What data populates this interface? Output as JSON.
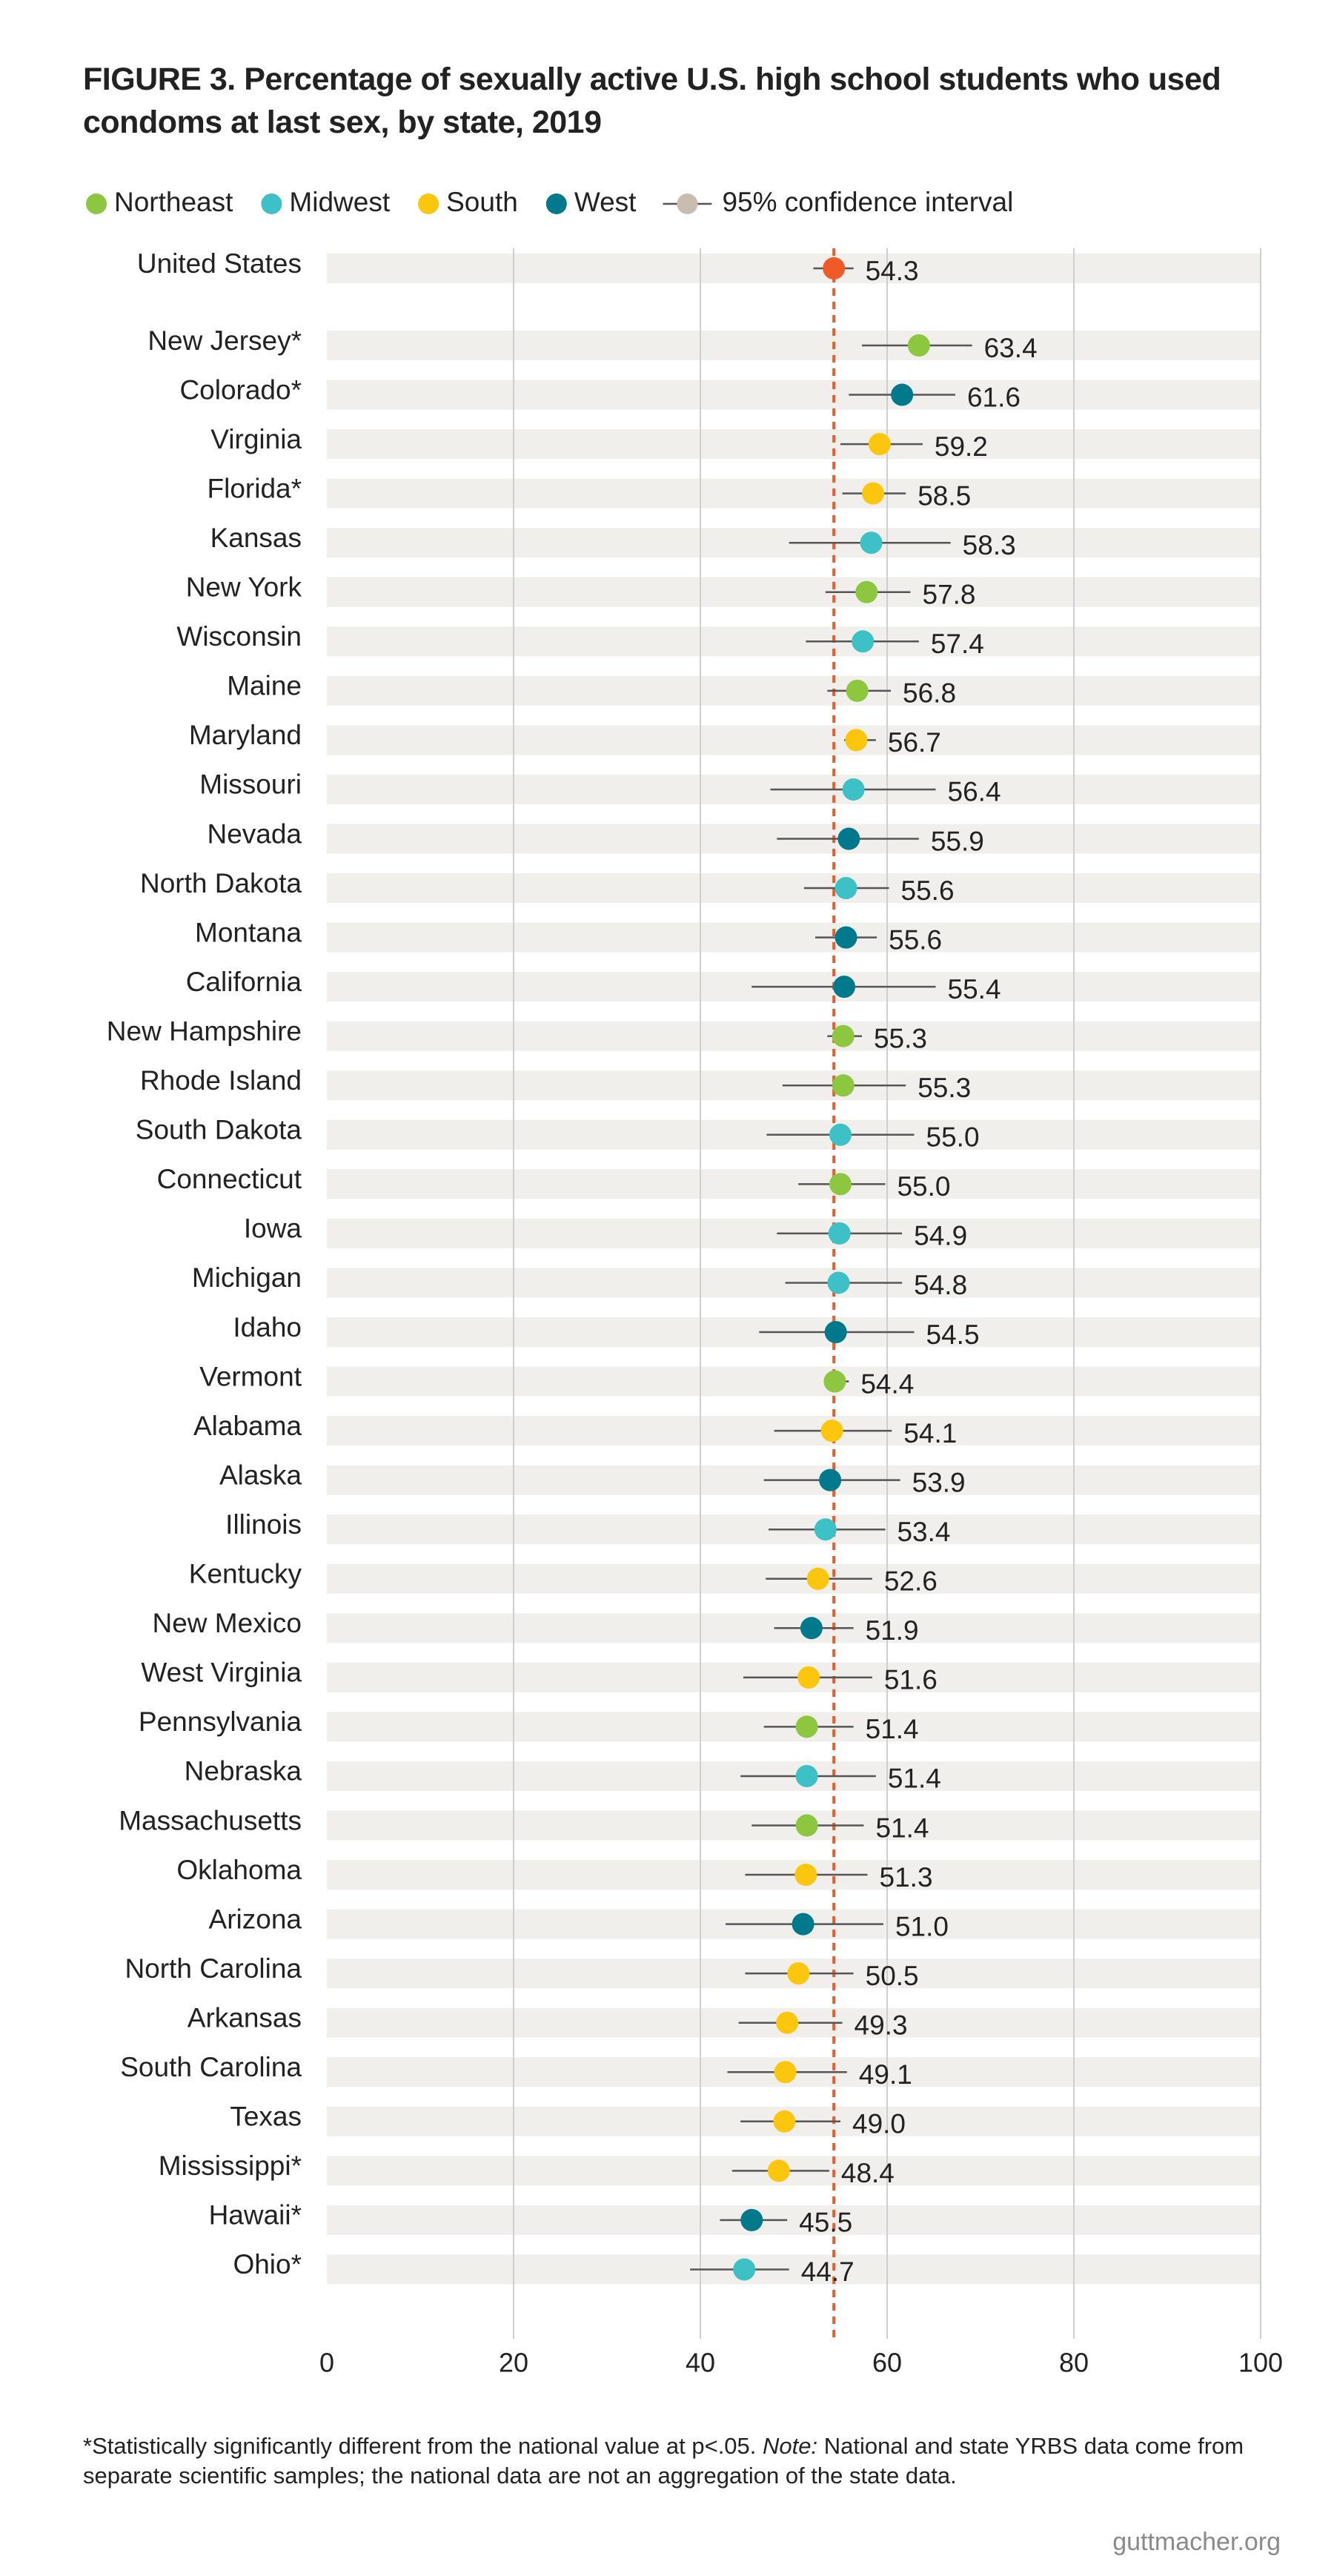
{
  "chart_data": {
    "type": "dot",
    "title": "FIGURE 3. Percentage of sexually active U.S. high school students who used condoms at last sex, by state, 2019",
    "legend": [
      {
        "name": "Northeast",
        "color": "#8dc63f"
      },
      {
        "name": "Midwest",
        "color": "#3ec1c6"
      },
      {
        "name": "South",
        "color": "#fcc60e"
      },
      {
        "name": "West",
        "color": "#00798c"
      }
    ],
    "ci_label": "95% confidence interval",
    "ci_color": "#555555",
    "ci_legend_color": "#c8beb0",
    "highlight_color": "#f05a28",
    "reference_color": "#f05a28",
    "band_color": "#f0efeb",
    "categories": [
      "United States",
      "New Jersey*",
      "Colorado*",
      "Virginia",
      "Florida*",
      "Kansas",
      "New York",
      "Wisconsin",
      "Maine",
      "Maryland",
      "Missouri",
      "Nevada",
      "North Dakota",
      "Montana",
      "California",
      "New Hampshire",
      "Rhode Island",
      "South Dakota",
      "Connecticut",
      "Iowa",
      "Michigan",
      "Idaho",
      "Vermont",
      "Alabama",
      "Alaska",
      "Illinois",
      "Kentucky",
      "New Mexico",
      "West Virginia",
      "Pennsylvania",
      "Nebraska",
      "Massachusetts",
      "Oklahoma",
      "Arizona",
      "North Carolina",
      "Arkansas",
      "South Carolina",
      "Texas",
      "Mississippi*",
      "Hawaii*",
      "Ohio*"
    ],
    "groups": [
      null,
      "Northeast",
      "West",
      "South",
      "South",
      "Midwest",
      "Northeast",
      "Midwest",
      "Northeast",
      "South",
      "Midwest",
      "West",
      "Midwest",
      "West",
      "West",
      "Northeast",
      "Northeast",
      "Midwest",
      "Northeast",
      "Midwest",
      "Midwest",
      "West",
      "Northeast",
      "South",
      "West",
      "Midwest",
      "South",
      "West",
      "South",
      "Northeast",
      "Midwest",
      "Northeast",
      "South",
      "West",
      "South",
      "South",
      "South",
      "South",
      "South",
      "West",
      "Midwest"
    ],
    "values": [
      54.3,
      63.4,
      61.6,
      59.2,
      58.5,
      58.3,
      57.8,
      57.4,
      56.8,
      56.7,
      56.4,
      55.9,
      55.6,
      55.6,
      55.4,
      55.3,
      55.3,
      55.0,
      55.0,
      54.9,
      54.8,
      54.5,
      54.4,
      54.1,
      53.9,
      53.4,
      52.6,
      51.9,
      51.6,
      51.4,
      51.4,
      51.4,
      51.3,
      51.0,
      50.5,
      49.3,
      49.1,
      49.0,
      48.4,
      45.5,
      44.7
    ],
    "value_labels": [
      "54.3",
      "63.4",
      "61.6",
      "59.2",
      "58.5",
      "58.3",
      "57.8",
      "57.4",
      "56.8",
      "56.7",
      "56.4",
      "55.9",
      "55.6",
      "55.6",
      "55.4",
      "55.3",
      "55.3",
      "55.0",
      "55.0",
      "54.9",
      "54.8",
      "54.5",
      "54.4",
      "54.1",
      "53.9",
      "53.4",
      "52.6",
      "51.9",
      "51.6",
      "51.4",
      "51.4",
      "51.4",
      "51.3",
      "51.0",
      "50.5",
      "49.3",
      "49.1",
      "49.0",
      "48.4",
      "45.5",
      "44.7"
    ],
    "ci_low": [
      52.1,
      57.3,
      55.9,
      55.0,
      55.2,
      49.5,
      53.4,
      51.3,
      53.6,
      55.4,
      47.5,
      48.2,
      51.1,
      52.3,
      45.5,
      53.6,
      48.8,
      47.1,
      50.5,
      48.2,
      49.1,
      46.3,
      53.4,
      47.9,
      46.8,
      47.3,
      47.0,
      47.9,
      44.6,
      46.8,
      44.3,
      45.5,
      44.8,
      42.7,
      44.8,
      44.1,
      42.9,
      44.3,
      43.4,
      42.1,
      38.9
    ],
    "ci_high": [
      56.4,
      69.1,
      67.3,
      63.8,
      62.0,
      66.8,
      62.5,
      63.4,
      60.4,
      58.8,
      65.2,
      63.4,
      60.2,
      58.9,
      65.2,
      57.3,
      62.0,
      62.9,
      59.8,
      61.6,
      61.6,
      62.9,
      55.9,
      60.5,
      61.4,
      59.8,
      58.4,
      56.4,
      58.4,
      56.4,
      58.8,
      57.5,
      57.9,
      59.6,
      56.4,
      55.2,
      55.7,
      55.0,
      53.8,
      49.3,
      49.5
    ],
    "xlim": [
      0,
      100
    ],
    "xticks": [
      0,
      20,
      40,
      60,
      80,
      100
    ],
    "grid": true,
    "footnote": [
      "*Statistically significantly different from the national value at p<.05. ",
      "Note:",
      " National and state YRBS data come from separate scientific samples; the national data are not an aggregation of the state data."
    ],
    "source": "guttmacher.org"
  }
}
